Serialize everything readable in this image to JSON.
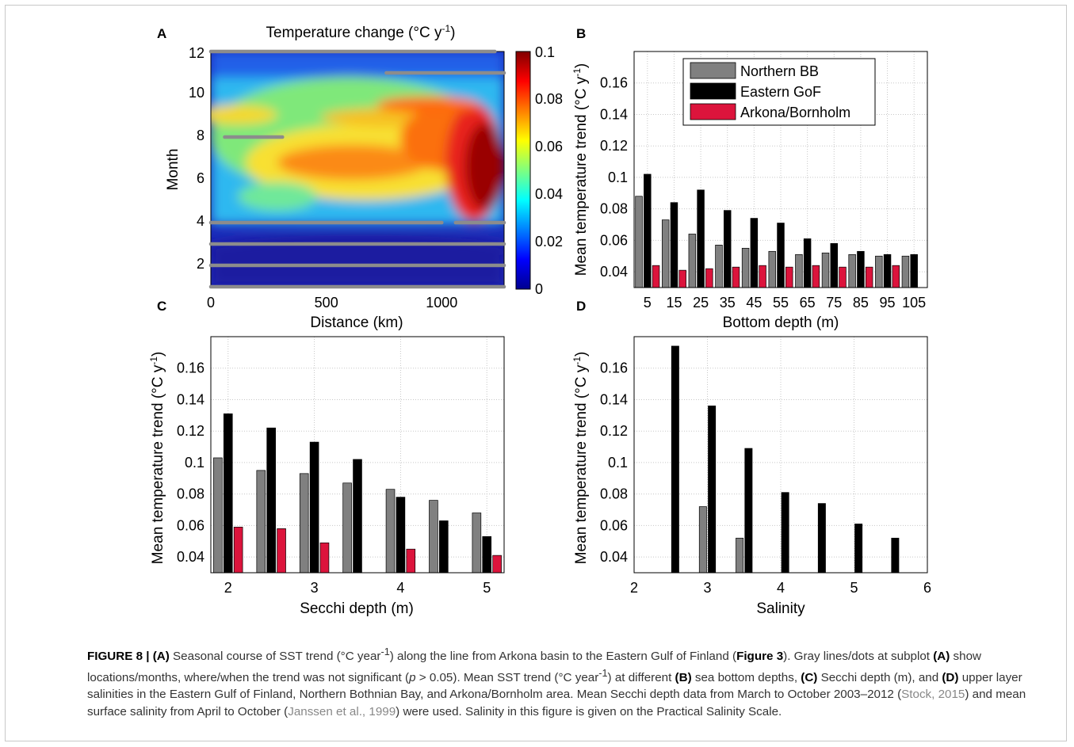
{
  "chart_data": [
    {
      "panel": "A",
      "type": "heatmap",
      "title": "Temperature change (°C y⁻¹)",
      "xlabel": "Distance (km)",
      "ylabel": "Month",
      "xticks": [
        "0",
        "500",
        "1000"
      ],
      "yticks": [
        "2",
        "4",
        "6",
        "8",
        "10",
        "12"
      ],
      "xlim": [
        0,
        1270
      ],
      "ylim": [
        1,
        12
      ],
      "colorbar": {
        "min": 0,
        "max": 0.1,
        "ticks": [
          "0",
          "0.02",
          "0.04",
          "0.06",
          "0.08",
          "0.1"
        ],
        "colormap": "jet"
      },
      "grid": false,
      "not_significant_lines": [
        {
          "month": 12,
          "from_km": 0,
          "to_km": 1230
        },
        {
          "month": 11,
          "from_km": 760,
          "to_km": 1270
        },
        {
          "month": 8,
          "from_km": 60,
          "to_km": 310
        },
        {
          "month": 4,
          "from_km": 0,
          "to_km": 1000
        },
        {
          "month": 4,
          "from_km": 1060,
          "to_km": 1270
        },
        {
          "month": 3,
          "from_km": 0,
          "to_km": 1270
        },
        {
          "month": 2,
          "from_km": 0,
          "to_km": 1270
        },
        {
          "month": 1,
          "from_km": 0,
          "to_km": 1270
        }
      ]
    },
    {
      "panel": "B",
      "type": "bar",
      "xlabel": "Bottom depth (m)",
      "ylabel": "Mean temperature trend (°C y⁻¹)",
      "categories": [
        "5",
        "15",
        "25",
        "35",
        "45",
        "55",
        "65",
        "75",
        "85",
        "95",
        "105"
      ],
      "ylim": [
        0.03,
        0.18
      ],
      "yticks": [
        "0.04",
        "0.06",
        "0.08",
        "0.1",
        "0.12",
        "0.14",
        "0.16"
      ],
      "grid": true,
      "legend": "top-right",
      "series": [
        {
          "name": "Northern BB",
          "color": "#808080",
          "values": [
            0.088,
            0.073,
            0.064,
            0.057,
            0.055,
            0.053,
            0.051,
            0.052,
            0.051,
            0.05,
            0.05
          ]
        },
        {
          "name": "Eastern GoF",
          "color": "#000000",
          "values": [
            0.102,
            0.084,
            0.092,
            0.079,
            0.074,
            0.071,
            0.061,
            0.058,
            0.053,
            0.051,
            0.051
          ]
        },
        {
          "name": "Arkona/Bornholm",
          "color": "#dc143c",
          "values": [
            0.044,
            0.041,
            0.042,
            0.043,
            0.044,
            0.043,
            0.044,
            0.043,
            0.043,
            0.044,
            null
          ]
        }
      ]
    },
    {
      "panel": "C",
      "type": "bar",
      "xlabel": "Secchi depth (m)",
      "ylabel": "Mean temperature trend (°C y⁻¹)",
      "xlim": [
        1.8,
        5.2
      ],
      "xticks": [
        "2",
        "3",
        "4",
        "5"
      ],
      "ylim": [
        0.03,
        0.18
      ],
      "yticks": [
        "0.04",
        "0.06",
        "0.08",
        "0.1",
        "0.12",
        "0.14",
        "0.16"
      ],
      "grid": true,
      "x": [
        2,
        2.5,
        3,
        3.5,
        4,
        4.5,
        5
      ],
      "series": [
        {
          "name": "Northern BB",
          "color": "#808080",
          "values": [
            0.103,
            0.095,
            0.093,
            0.087,
            0.083,
            0.076,
            0.068
          ]
        },
        {
          "name": "Eastern GoF",
          "color": "#000000",
          "values": [
            0.131,
            0.122,
            0.113,
            0.102,
            0.078,
            0.063,
            0.053
          ]
        },
        {
          "name": "Arkona/Bornholm",
          "color": "#dc143c",
          "values": [
            0.059,
            0.058,
            0.049,
            null,
            0.045,
            null,
            0.041
          ]
        }
      ]
    },
    {
      "panel": "D",
      "type": "bar",
      "xlabel": "Salinity",
      "ylabel": "Mean temperature trend (°C y⁻¹)",
      "xlim": [
        2,
        6
      ],
      "xticks": [
        "2",
        "3",
        "4",
        "5",
        "6"
      ],
      "ylim": [
        0.03,
        0.18
      ],
      "yticks": [
        "0.04",
        "0.06",
        "0.08",
        "0.1",
        "0.12",
        "0.14",
        "0.16"
      ],
      "grid": true,
      "x": [
        2.5,
        3,
        3.5,
        4,
        4.5,
        5,
        5.5
      ],
      "series": [
        {
          "name": "Northern BB",
          "color": "#808080",
          "values": [
            null,
            0.072,
            0.052,
            null,
            null,
            null,
            null
          ]
        },
        {
          "name": "Eastern GoF",
          "color": "#000000",
          "values": [
            0.174,
            0.136,
            0.109,
            0.081,
            0.074,
            0.061,
            0.052
          ]
        }
      ]
    }
  ],
  "caption": {
    "t1": "FIGURE 8 | (A)",
    "t2": " Seasonal course of SST trend (°C year",
    "t3": "-1",
    "t4": ") along the line from Arkona basin to the Eastern Gulf of Finland (",
    "t5": "Figure 3",
    "t6": "). Gray lines/dots at subplot ",
    "t7": "(A)",
    "t8": " show locations/months, where/when the trend was not significant (",
    "t9": "p",
    "t10": " > 0.05). Mean SST trend (°C year",
    "t11": "-1",
    "t12": ") at different ",
    "t13": "(B)",
    "t14": " sea bottom depths, ",
    "t15": "(C)",
    "t16": " Secchi depth (m), and ",
    "t17": "(D)",
    "t18": " upper layer salinities in the Eastern Gulf of Finland, Northern Bothnian Bay, and Arkona/Bornholm area. Mean Secchi depth data from March to October 2003–2012 (",
    "t19": "Stock, 2015",
    "t20": ") and mean surface salinity from April to October (",
    "t21": "Janssen et al., 1999",
    "t22": ") were used. Salinity in this figure is given on the Practical Salinity Scale."
  }
}
